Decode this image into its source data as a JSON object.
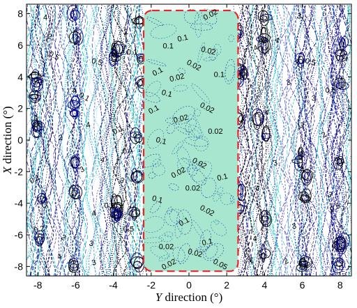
{
  "chart_data": {
    "type": "contour",
    "xlabel": "Y direction (°)",
    "ylabel": "X direction (°)",
    "xlabel_parts": {
      "var": "Y",
      "rest": " direction (°)"
    },
    "ylabel_parts": {
      "var": "X",
      "rest": " direction (°)"
    },
    "xlim": [
      -8.6,
      8.6
    ],
    "ylim": [
      -8.6,
      8.6
    ],
    "x_ticks": [
      -8,
      -6,
      -4,
      -2,
      0,
      2,
      4,
      6,
      8
    ],
    "y_ticks": [
      -8,
      -6,
      -4,
      -2,
      0,
      2,
      4,
      6,
      8
    ],
    "x_tick_labels": [
      "-8",
      "-6",
      "-4",
      "-2",
      "0",
      "2",
      "4",
      "6",
      "8"
    ],
    "y_tick_labels": [
      "8",
      "6",
      "4",
      "2",
      "0",
      "-2",
      "-4",
      "-6",
      "-8"
    ],
    "grid": false,
    "region": {
      "y_range": [
        -2.4,
        2.6
      ],
      "x_range": [
        -8.3,
        8.2
      ],
      "fill": "#a8e6cf",
      "border_color": "#e8262a"
    },
    "contour_levels": [
      0.02,
      0.05,
      0.1,
      0.2,
      0.5,
      1,
      2,
      3,
      4
    ],
    "contour_labels": [
      {
        "x": 1.2,
        "y": 7.8,
        "text": "0.02"
      },
      {
        "x": -0.3,
        "y": 6.3,
        "text": "0.1"
      },
      {
        "x": -1.1,
        "y": 5.8,
        "text": "0.1"
      },
      {
        "x": 1.0,
        "y": 5.5,
        "text": "0.02"
      },
      {
        "x": 0.2,
        "y": 4.6,
        "text": "0.02"
      },
      {
        "x": -1.6,
        "y": 4.2,
        "text": "0.1"
      },
      {
        "x": -0.6,
        "y": 3.8,
        "text": "0.02"
      },
      {
        "x": 1.6,
        "y": 4.0,
        "text": "0.1"
      },
      {
        "x": -1.2,
        "y": 2.8,
        "text": "0.1"
      },
      {
        "x": 0.9,
        "y": 1.9,
        "text": "0.02"
      },
      {
        "x": -1.8,
        "y": 1.8,
        "text": "0.1"
      },
      {
        "x": -0.4,
        "y": 1.2,
        "text": "0.02"
      },
      {
        "x": 1.4,
        "y": 0.4,
        "text": "0.02"
      },
      {
        "x": -1.5,
        "y": -0.2,
        "text": "0.1"
      },
      {
        "x": 0.5,
        "y": -1.6,
        "text": "0.02"
      },
      {
        "x": -0.5,
        "y": -2.2,
        "text": "0.02"
      },
      {
        "x": 1.8,
        "y": -2.5,
        "text": "0.1"
      },
      {
        "x": 0.2,
        "y": -3.2,
        "text": "0.02"
      },
      {
        "x": -1.7,
        "y": -3.9,
        "text": "0.1"
      },
      {
        "x": 0.9,
        "y": -4.6,
        "text": "0.02"
      },
      {
        "x": -0.2,
        "y": -5.3,
        "text": "0.1"
      },
      {
        "x": 1.0,
        "y": -6.6,
        "text": "0.1"
      },
      {
        "x": -1.2,
        "y": -6.9,
        "text": "0.02"
      },
      {
        "x": 0.3,
        "y": -7.3,
        "text": "0.02"
      },
      {
        "x": 1.6,
        "y": -8.0,
        "text": "0.05"
      },
      {
        "x": -1.0,
        "y": -8.0,
        "text": "0.02"
      },
      {
        "x": -3.3,
        "y": 6.7,
        "text": "2"
      },
      {
        "x": -3.0,
        "y": 5.4,
        "text": "0.1"
      },
      {
        "x": -4.9,
        "y": 4.8,
        "text": "0.5"
      },
      {
        "x": -5.6,
        "y": 2.6,
        "text": "0.1"
      },
      {
        "x": -6.0,
        "y": 3.0,
        "text": "4"
      },
      {
        "x": -5.3,
        "y": 0.8,
        "text": "4"
      },
      {
        "x": -6.8,
        "y": 0.0,
        "text": "2"
      },
      {
        "x": -4.6,
        "y": -1.4,
        "text": "4"
      },
      {
        "x": -3.6,
        "y": -2.7,
        "text": "3"
      },
      {
        "x": -5.6,
        "y": -2.0,
        "text": "3"
      },
      {
        "x": -5.0,
        "y": -4.8,
        "text": "4"
      },
      {
        "x": -3.2,
        "y": -5.8,
        "text": "0.5"
      },
      {
        "x": -5.2,
        "y": -6.7,
        "text": "3"
      },
      {
        "x": -6.7,
        "y": -6.3,
        "text": "2"
      },
      {
        "x": -6.8,
        "y": -7.5,
        "text": "4"
      },
      {
        "x": -5.0,
        "y": -7.9,
        "text": "3"
      },
      {
        "x": -7.6,
        "y": 7.6,
        "text": "4"
      },
      {
        "x": -7.4,
        "y": 6.4,
        "text": "2"
      },
      {
        "x": -7.2,
        "y": 5.2,
        "text": "0.5"
      },
      {
        "x": -3.7,
        "y": 0.5,
        "text": "0.1"
      },
      {
        "x": -3.2,
        "y": -0.8,
        "text": "0.1"
      },
      {
        "x": -4.2,
        "y": -4.3,
        "text": "0.1"
      },
      {
        "x": 5.8,
        "y": 7.7,
        "text": "3"
      },
      {
        "x": 4.6,
        "y": 6.2,
        "text": "4"
      },
      {
        "x": 3.6,
        "y": 5.7,
        "text": "4"
      },
      {
        "x": 5.3,
        "y": 3.5,
        "text": "3"
      },
      {
        "x": 6.6,
        "y": 2.5,
        "text": "3"
      },
      {
        "x": 4.1,
        "y": 1.6,
        "text": "4"
      },
      {
        "x": 5.9,
        "y": 0.8,
        "text": "3"
      },
      {
        "x": 7.2,
        "y": 0.2,
        "text": "2"
      },
      {
        "x": 4.6,
        "y": -1.6,
        "text": "3"
      },
      {
        "x": 6.0,
        "y": -2.0,
        "text": "4"
      },
      {
        "x": 3.6,
        "y": -3.2,
        "text": "4"
      },
      {
        "x": 7.4,
        "y": -3.6,
        "text": "3"
      },
      {
        "x": 7.8,
        "y": -4.4,
        "text": "0.5"
      },
      {
        "x": 5.6,
        "y": -5.6,
        "text": "3"
      },
      {
        "x": 3.5,
        "y": -6.4,
        "text": "4"
      },
      {
        "x": 7.8,
        "y": -6.9,
        "text": "0.5"
      },
      {
        "x": 3.2,
        "y": -7.7,
        "text": "4"
      },
      {
        "x": 5.2,
        "y": -7.8,
        "text": "2"
      },
      {
        "x": 8.1,
        "y": 5.1,
        "text": "0.2"
      },
      {
        "x": 7.5,
        "y": 3.0,
        "text": "0.5"
      },
      {
        "x": 6.4,
        "y": 4.8,
        "text": "0.5"
      },
      {
        "x": -8.0,
        "y": 3.6,
        "text": "0.1"
      },
      {
        "x": -8.1,
        "y": -2.6,
        "text": "0.1"
      },
      {
        "x": -7.9,
        "y": -5.8,
        "text": "0.2"
      }
    ]
  }
}
